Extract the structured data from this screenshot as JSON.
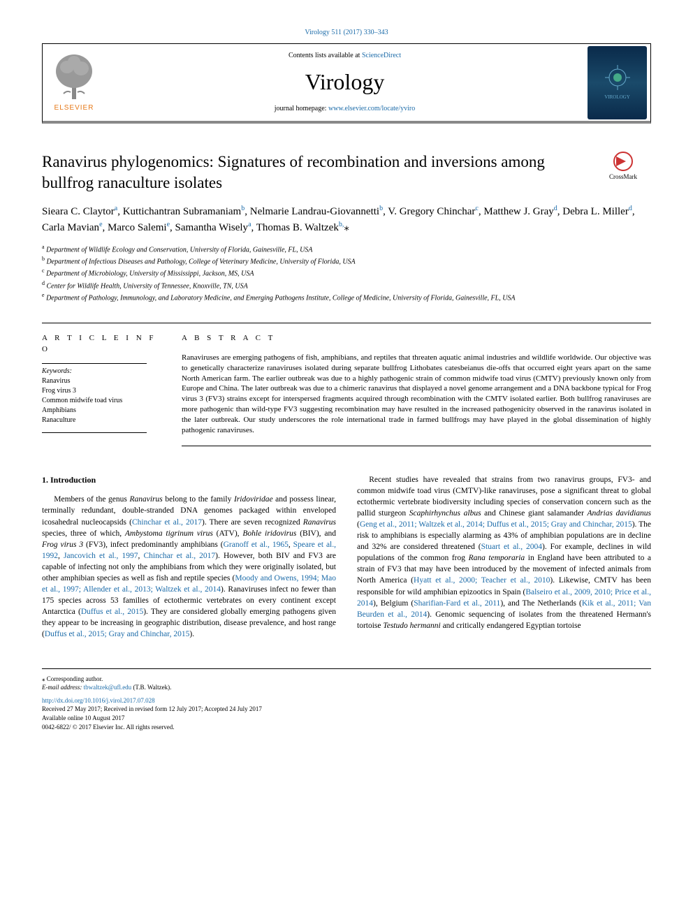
{
  "header": {
    "citation": "Virology 511 (2017) 330–343",
    "contents_prefix": "Contents lists available at ",
    "contents_link": "ScienceDirect",
    "journal": "Virology",
    "homepage_prefix": "journal homepage: ",
    "homepage_url": "www.elsevier.com/locate/yviro",
    "elsevier": "ELSEVIER",
    "cover_text": "VIROLOGY",
    "crossmark": "CrossMark"
  },
  "article": {
    "title": "Ranavirus phylogenomics: Signatures of recombination and inversions among bullfrog ranaculture isolates",
    "authors_html": "Sieara C. Claytor<sup>a</sup>, Kuttichantran Subramaniam<sup>b</sup>, Nelmarie Landrau-Giovannetti<sup>b</sup>, V. Gregory Chinchar<sup>c</sup>, Matthew J. Gray<sup>d</sup>, Debra L. Miller<sup>d</sup>, Carla Mavian<sup>e</sup>, Marco Salemi<sup>e</sup>, Samantha Wisely<sup>a</sup>, Thomas B. Waltzek<sup>b,</sup>⁎",
    "affiliations": [
      {
        "sup": "a",
        "text": "Department of Wildlife Ecology and Conservation, University of Florida, Gainesville, FL, USA"
      },
      {
        "sup": "b",
        "text": "Department of Infectious Diseases and Pathology, College of Veterinary Medicine, University of Florida, USA"
      },
      {
        "sup": "c",
        "text": "Department of Microbiology, University of Mississippi, Jackson, MS, USA"
      },
      {
        "sup": "d",
        "text": "Center for Wildlife Health, University of Tennessee, Knoxville, TN, USA"
      },
      {
        "sup": "e",
        "text": "Department of Pathology, Immunology, and Laboratory Medicine, and Emerging Pathogens Institute, College of Medicine, University of Florida, Gainesville, FL, USA"
      }
    ]
  },
  "info": {
    "heading": "A R T I C L E  I N F O",
    "keywords_label": "Keywords:",
    "keywords": [
      "Ranavirus",
      "Frog virus 3",
      "Common midwife toad virus",
      "Amphibians",
      "Ranaculture"
    ]
  },
  "abstract": {
    "heading": "A B S T R A C T",
    "text": "Ranaviruses are emerging pathogens of fish, amphibians, and reptiles that threaten aquatic animal industries and wildlife worldwide. Our objective was to genetically characterize ranaviruses isolated during separate bullfrog Lithobates catesbeianus die-offs that occurred eight years apart on the same North American farm. The earlier outbreak was due to a highly pathogenic strain of common midwife toad virus (CMTV) previously known only from Europe and China. The later outbreak was due to a chimeric ranavirus that displayed a novel genome arrangement and a DNA backbone typical for Frog virus 3 (FV3) strains except for interspersed fragments acquired through recombination with the CMTV isolated earlier. Both bullfrog ranaviruses are more pathogenic than wild-type FV3 suggesting recombination may have resulted in the increased pathogenicity observed in the ranavirus isolated in the later outbreak. Our study underscores the role international trade in farmed bullfrogs may have played in the global dissemination of highly pathogenic ranaviruses."
  },
  "body": {
    "intro_heading": "1. Introduction",
    "col1_p1_parts": [
      {
        "t": "Members of the genus "
      },
      {
        "t": "Ranavirus",
        "i": true
      },
      {
        "t": " belong to the family "
      },
      {
        "t": "Iridoviridae",
        "i": true
      },
      {
        "t": " and possess linear, terminally redundant, double-stranded DNA genomes packaged within enveloped icosahedral nucleocapsids ("
      },
      {
        "t": "Chinchar et al., 2017",
        "r": true
      },
      {
        "t": "). There are seven recognized "
      },
      {
        "t": "Ranavirus",
        "i": true
      },
      {
        "t": " species, three of which, "
      },
      {
        "t": "Ambystoma tigrinum virus",
        "i": true
      },
      {
        "t": " (ATV), "
      },
      {
        "t": "Bohle iridovirus",
        "i": true
      },
      {
        "t": " (BIV), and "
      },
      {
        "t": "Frog virus 3",
        "i": true
      },
      {
        "t": " (FV3), infect predominantly amphibians ("
      },
      {
        "t": "Granoff et al., 1965",
        "r": true
      },
      {
        "t": ", "
      },
      {
        "t": "Speare et al., 1992",
        "r": true
      },
      {
        "t": ", "
      },
      {
        "t": "Jancovich et al., 1997",
        "r": true
      },
      {
        "t": ", "
      },
      {
        "t": "Chinchar et al., 2017",
        "r": true
      },
      {
        "t": "). However, both BIV and FV3 are capable of infecting not only the amphibians from which they were originally isolated, but other amphibian species as well as fish and reptile species ("
      },
      {
        "t": "Moody and Owens, 1994; Mao et al., 1997; Allender et al., 2013; Waltzek et al., 2014",
        "r": true
      },
      {
        "t": "). Ranaviruses infect no fewer than 175 species across 53 families of ectothermic vertebrates on every continent except Antarctica ("
      },
      {
        "t": "Duffus et al., 2015",
        "r": true
      },
      {
        "t": "). They are considered globally emerging pathogens given they appear to be increasing in geographic distribution, disease prevalence, and host range ("
      },
      {
        "t": "Duffus et al., 2015; Gray and Chinchar, 2015",
        "r": true
      },
      {
        "t": ")."
      }
    ],
    "col2_p1_parts": [
      {
        "t": "Recent studies have revealed that strains from two ranavirus groups, FV3- and common midwife toad virus (CMTV)-like ranaviruses, pose a significant threat to global ectothermic vertebrate biodiversity including species of conservation concern such as the pallid sturgeon "
      },
      {
        "t": "Scaphirhynchus albus",
        "i": true
      },
      {
        "t": " and Chinese giant salamander "
      },
      {
        "t": "Andrias davidianus",
        "i": true
      },
      {
        "t": " ("
      },
      {
        "t": "Geng et al., 2011; Waltzek et al., 2014; Duffus et al., 2015; Gray and Chinchar, 2015",
        "r": true
      },
      {
        "t": "). The risk to amphibians is especially alarming as 43% of amphibian populations are in decline and 32% are considered threatened ("
      },
      {
        "t": "Stuart et al., 2004",
        "r": true
      },
      {
        "t": "). For example, declines in wild populations of the common frog "
      },
      {
        "t": "Rana temporaria",
        "i": true
      },
      {
        "t": " in England have been attributed to a strain of FV3 that may have been introduced by the movement of infected animals from North America ("
      },
      {
        "t": "Hyatt et al., 2000; Teacher et al., 2010",
        "r": true
      },
      {
        "t": "). Likewise, CMTV has been responsible for wild amphibian epizootics in Spain ("
      },
      {
        "t": "Balseiro et al., 2009, 2010; Price et al., 2014",
        "r": true
      },
      {
        "t": "), Belgium ("
      },
      {
        "t": "Sharifian-Fard et al., 2011",
        "r": true
      },
      {
        "t": "), and The Netherlands ("
      },
      {
        "t": "Kik et al., 2011; Van Beurden et al., 2014",
        "r": true
      },
      {
        "t": "). Genomic sequencing of isolates from the threatened Hermann's tortoise "
      },
      {
        "t": "Testudo hermanni",
        "i": true
      },
      {
        "t": " and critically endangered Egyptian tortoise"
      }
    ]
  },
  "footer": {
    "corresponding": "⁎ Corresponding author.",
    "email_label": "E-mail address: ",
    "email": "tbwaltzek@ufl.edu",
    "email_suffix": " (T.B. Waltzek).",
    "doi": "http://dx.doi.org/10.1016/j.virol.2017.07.028",
    "received": "Received 27 May 2017; Received in revised form 12 July 2017; Accepted 24 July 2017",
    "available": "Available online 10 August 2017",
    "copyright": "0042-6822/ © 2017 Elsevier Inc. All rights reserved."
  },
  "colors": {
    "link": "#1a6aa8",
    "elsevier_orange": "#e67817"
  }
}
